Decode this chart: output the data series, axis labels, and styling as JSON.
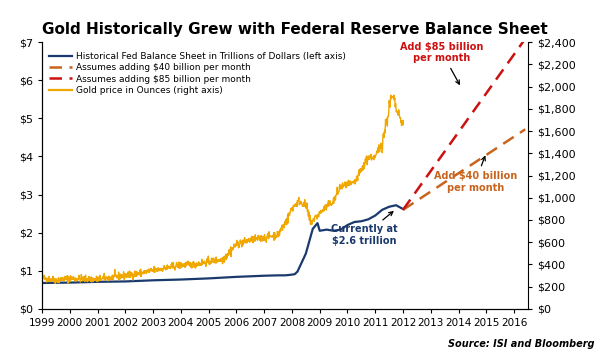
{
  "title": "Gold Historically Grew with Federal Reserve Balance Sheet",
  "title_fontsize": 11,
  "background_color": "#ffffff",
  "left_ylim": [
    0,
    7
  ],
  "right_ylim": [
    0,
    2400
  ],
  "left_yticks": [
    0,
    1,
    2,
    3,
    4,
    5,
    6,
    7
  ],
  "right_yticks": [
    0,
    200,
    400,
    600,
    800,
    1000,
    1200,
    1400,
    1600,
    1800,
    2000,
    2200,
    2400
  ],
  "xlim_start": 1999.0,
  "xlim_end": 2016.5,
  "xtick_years": [
    1999,
    2000,
    2001,
    2002,
    2003,
    2004,
    2005,
    2006,
    2007,
    2008,
    2009,
    2010,
    2011,
    2012,
    2013,
    2014,
    2015,
    2016
  ],
  "fed_color": "#1a3a6e",
  "gold_color": "#f0a800",
  "proj40_color": "#c8641e",
  "proj85_color": "#cc1111",
  "legend_entries": [
    "Historical Fed Balance Sheet in Trillions of Dollars (left axis)",
    "Assumes adding $40 billion per month",
    "Assumes adding $85 billion per month",
    "Gold price in Ounces (right axis)"
  ],
  "source_text": "Source: ISI and Bloomberg"
}
